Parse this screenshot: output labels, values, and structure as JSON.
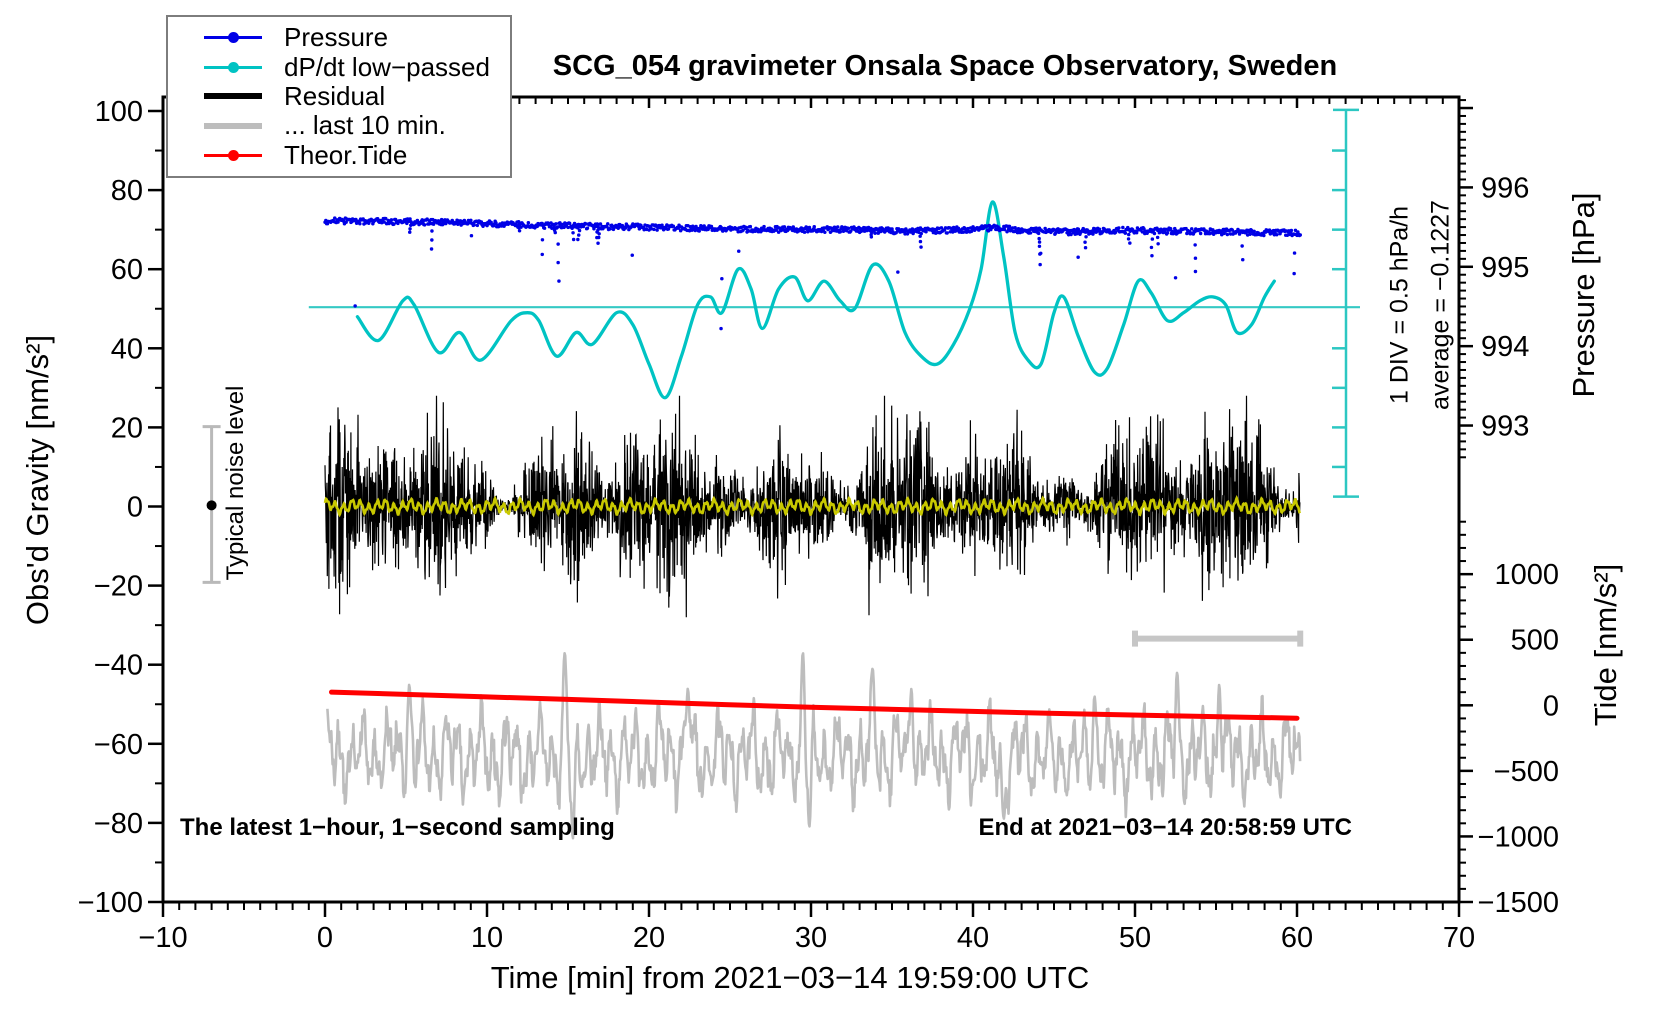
{
  "title": "SCG_054 gravimeter Onsala Space Observatory, Sweden",
  "colors": {
    "pressure_blue": "#0000e6",
    "dpdt_cyan": "#00c3c3",
    "dpdt_centerline": "#35c9c4",
    "residual_black": "#000000",
    "residual_lowpass_yellow": "#c8c800",
    "last10_gray": "#bdbdbd",
    "tide_red": "#ff0000",
    "scalebar_gray": "#c6c6c6",
    "errorbar_gray": "#b9b9b9",
    "frame": "#000000"
  },
  "legend": {
    "entries": [
      {
        "label": "Pressure",
        "color": "#0000e6",
        "style": "line-dot"
      },
      {
        "label": "dP/dt low−passed",
        "color": "#00c3c3",
        "style": "line-dot"
      },
      {
        "label": "Residual",
        "color": "#000000",
        "style": "thick-line"
      },
      {
        "label": "... last 10 min.",
        "color": "#bdbdbd",
        "style": "thick-line"
      },
      {
        "label": "Theor.Tide",
        "color": "#ff0000",
        "style": "line-dot"
      }
    ]
  },
  "annotations": {
    "div_scale": "1 DIV = 0.5 hPa/h",
    "average": "average = −0.1227",
    "noise_level": "Typical noise level",
    "sampling": "The latest 1−hour, 1−second sampling",
    "end_time": "End at 2021−03−14 20:58:59 UTC"
  },
  "axes": {
    "x": {
      "label": "Time [min] from 2021−03−14 19:59:00 UTC",
      "range": [
        -10,
        70
      ],
      "major": 10,
      "minor": 1,
      "tick_values": [
        -10,
        0,
        10,
        20,
        30,
        40,
        50,
        60,
        70
      ],
      "tick_labels": [
        "−10",
        "0",
        "10",
        "20",
        "30",
        "40",
        "50",
        "60",
        "70"
      ]
    },
    "y_left": {
      "label": "Obs'd Gravity [nm/s²]",
      "range": [
        -100,
        100
      ],
      "major": 20,
      "minor": 10,
      "tick_values": [
        -100,
        -80,
        -60,
        -40,
        -20,
        0,
        20,
        40,
        60,
        80,
        100
      ],
      "tick_labels": [
        "−100",
        "−80",
        "−60",
        "−40",
        "−20",
        "0",
        "20",
        "40",
        "60",
        "80",
        "100"
      ]
    },
    "y_right_pressure": {
      "label": "Pressure [hPa]",
      "tick_values": [
        993,
        994,
        995,
        996
      ],
      "tick_labels": [
        "993",
        "994",
        "995",
        "996"
      ],
      "minor": 0.1,
      "gravity_units_per_hPa": 20.07,
      "hPa_at_gravity_zero": 991.98
    },
    "y_right_tide": {
      "label": "Tide [nm/s²]",
      "tick_values": [
        -1500,
        -1000,
        -500,
        0,
        500,
        1000
      ],
      "tick_labels": [
        "−1500",
        "−1000",
        "−500",
        "0",
        "500",
        "1000"
      ],
      "minor": 100,
      "tide_units_per_gravity_unit": 30.16,
      "tide_at_gravity_minus100": -1500
    }
  },
  "chart_data": {
    "type": "line",
    "title": "SCG_054 gravimeter Onsala Space Observatory, Sweden",
    "xlabel": "Time [min] from 2021−03−14 19:59:00 UTC",
    "ylabel": "Obs'd Gravity [nm/s²]",
    "xlim": [
      -10,
      70
    ],
    "ylim": [
      -100,
      100
    ],
    "grid": false,
    "legend_position": "top-left",
    "series": [
      {
        "name": "Pressure",
        "type": "dots",
        "color": "#0000e6",
        "axis": "pressure_hPa",
        "points": [
          [
            0,
            995.58
          ],
          [
            4,
            995.57
          ],
          [
            8,
            995.56
          ],
          [
            12,
            995.53
          ],
          [
            16,
            995.51
          ],
          [
            20,
            995.5
          ],
          [
            24,
            995.48
          ],
          [
            28,
            995.47
          ],
          [
            32,
            995.47
          ],
          [
            36,
            995.45
          ],
          [
            40,
            995.47
          ],
          [
            41.5,
            995.49
          ],
          [
            43,
            995.46
          ],
          [
            46,
            995.44
          ],
          [
            49,
            995.46
          ],
          [
            52,
            995.45
          ],
          [
            55,
            995.44
          ],
          [
            58,
            995.43
          ],
          [
            60.2,
            995.43
          ]
        ],
        "scatter_noise_hPa": 0.04,
        "downward_outliers_to_hPa": 0.3
      },
      {
        "name": "dP/dt low−passed",
        "type": "smooth-line",
        "color": "#00c3c3",
        "axis": "gravity_display",
        "centerline_gravity": 50.4,
        "centerline_is_average": true,
        "average_hPa_per_h": -0.1227,
        "div_hPa_per_h": 0.5,
        "div_gravity_units": 10.06,
        "points": [
          [
            2,
            48
          ],
          [
            3.3,
            42
          ],
          [
            4.8,
            52
          ],
          [
            5.5,
            51
          ],
          [
            7,
            39
          ],
          [
            8.3,
            44
          ],
          [
            9.6,
            37
          ],
          [
            11.5,
            47
          ],
          [
            12.5,
            49
          ],
          [
            13.2,
            47
          ],
          [
            14.3,
            38
          ],
          [
            15.5,
            44
          ],
          [
            16.5,
            41
          ],
          [
            18,
            49
          ],
          [
            19,
            46
          ],
          [
            20,
            36
          ],
          [
            21,
            27.5
          ],
          [
            22,
            38
          ],
          [
            23,
            51
          ],
          [
            23.8,
            53
          ],
          [
            24.5,
            49
          ],
          [
            25.5,
            60
          ],
          [
            26.3,
            55
          ],
          [
            27,
            45
          ],
          [
            28,
            55
          ],
          [
            29,
            58
          ],
          [
            29.8,
            52
          ],
          [
            30.8,
            57
          ],
          [
            31.8,
            52
          ],
          [
            32.7,
            50
          ],
          [
            33.8,
            61
          ],
          [
            34.8,
            57
          ],
          [
            35.8,
            44
          ],
          [
            36.8,
            38
          ],
          [
            37.8,
            36
          ],
          [
            38.8,
            41
          ],
          [
            39.8,
            50
          ],
          [
            40.5,
            60
          ],
          [
            41.2,
            77
          ],
          [
            41.9,
            63
          ],
          [
            42.6,
            44
          ],
          [
            43.4,
            37
          ],
          [
            44.2,
            36
          ],
          [
            45,
            49
          ],
          [
            45.6,
            53
          ],
          [
            46.5,
            43
          ],
          [
            47.5,
            34
          ],
          [
            48.3,
            35
          ],
          [
            49.3,
            46
          ],
          [
            50.2,
            57
          ],
          [
            51,
            54
          ],
          [
            52,
            47
          ],
          [
            53,
            49
          ],
          [
            54,
            52
          ],
          [
            54.8,
            53
          ],
          [
            55.6,
            51
          ],
          [
            56.3,
            44
          ],
          [
            57.2,
            46
          ],
          [
            58,
            53
          ],
          [
            58.6,
            57
          ]
        ]
      },
      {
        "name": "Residual",
        "type": "noise-band",
        "color": "#000000",
        "axis": "gravity",
        "center": 0,
        "typical_amplitude": 14,
        "max_amplitude": 28,
        "lowpassed_overlay": {
          "color": "#c8c800",
          "amplitude": 1.8
        }
      },
      {
        "name": "... last 10 min.",
        "type": "noise-line",
        "color": "#bdbdbd",
        "axis": "gravity_display",
        "center": -63,
        "typical_amplitude": 11,
        "range": [
          -85,
          -36
        ],
        "note": "last 10 minutes of residual stretched across the hour; width indicated by gray 10-min bar",
        "peaks": [
          [
            5.2,
            -45
          ],
          [
            14.8,
            -37
          ],
          [
            15.3,
            -84
          ],
          [
            22.4,
            -46
          ],
          [
            29.5,
            -37
          ],
          [
            29.9,
            -81
          ],
          [
            33.8,
            -41
          ],
          [
            36.2,
            -46
          ],
          [
            41.9,
            -79
          ],
          [
            47.5,
            -48
          ],
          [
            52.6,
            -42
          ],
          [
            55.2,
            -45
          ]
        ]
      },
      {
        "name": "Theor.Tide",
        "type": "thick-line",
        "color": "#ff0000",
        "axis": "tide_nms2",
        "points": [
          [
            0.4,
            101
          ],
          [
            15,
            45
          ],
          [
            30,
            -15
          ],
          [
            45,
            -62
          ],
          [
            60,
            -98
          ]
        ]
      }
    ],
    "scale_bars": {
      "pressure_rate_bar": {
        "x_time": 63,
        "gravity_span": [
          2.5,
          100.3
        ],
        "division_gravity_units": 10.06,
        "color": "#2cc7c2"
      },
      "ten_min_bar": {
        "time_span": [
          50,
          60.2
        ],
        "gravity": -33.4,
        "color": "#c6c6c6"
      },
      "noise_error_bar": {
        "time": -7,
        "gravity_span": [
          -19.2,
          20.2
        ],
        "dot_gravity": 0.3,
        "color": "#b9b9b9"
      }
    }
  }
}
